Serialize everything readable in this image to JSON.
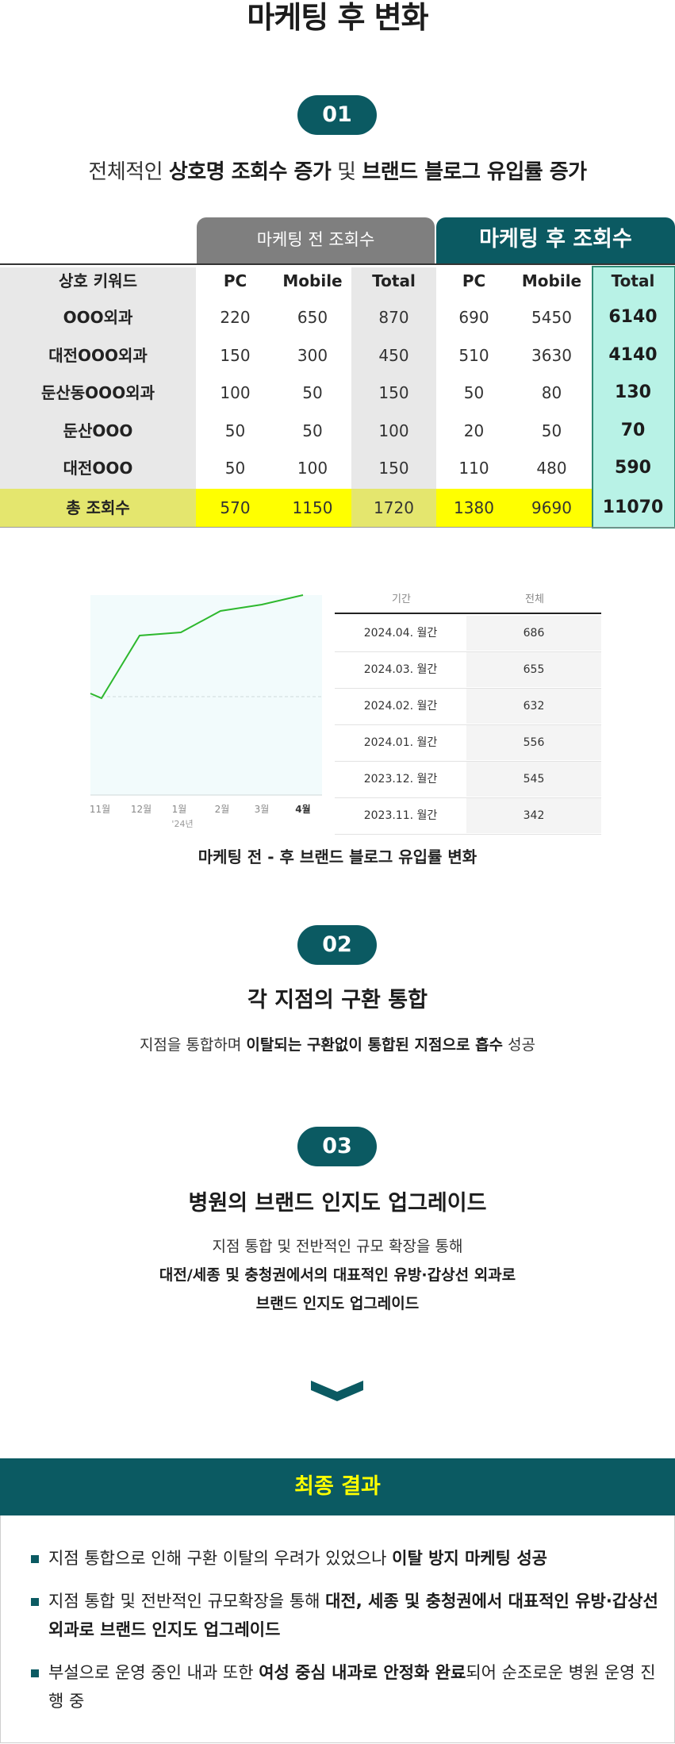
{
  "page_title": "마케팅 후 변화",
  "section1": {
    "number": "01",
    "subtitle_pre": "전체적인 ",
    "subtitle_b1": "상호명 조회수 증가",
    "subtitle_mid": " 및 ",
    "subtitle_b2": "브랜드 블로그 유입률 증가"
  },
  "keyword_table": {
    "group_before": "마케팅 전 조회수",
    "group_after": "마케팅 후 조회수",
    "columns": [
      "상호 키워드",
      "PC",
      "Mobile",
      "Total",
      "PC",
      "Mobile",
      "Total"
    ],
    "rows": [
      {
        "keyword": "OOO외과",
        "before_pc": "220",
        "before_mobile": "650",
        "before_total": "870",
        "after_pc": "690",
        "after_mobile": "5450",
        "after_total": "6140"
      },
      {
        "keyword": "대전OOO외과",
        "before_pc": "150",
        "before_mobile": "300",
        "before_total": "450",
        "after_pc": "510",
        "after_mobile": "3630",
        "after_total": "4140"
      },
      {
        "keyword": "둔산동OOO외과",
        "before_pc": "100",
        "before_mobile": "50",
        "before_total": "150",
        "after_pc": "50",
        "after_mobile": "80",
        "after_total": "130"
      },
      {
        "keyword": "둔산OOO",
        "before_pc": "50",
        "before_mobile": "50",
        "before_total": "100",
        "after_pc": "20",
        "after_mobile": "50",
        "after_total": "70"
      },
      {
        "keyword": "대전OOO",
        "before_pc": "50",
        "before_mobile": "100",
        "before_total": "150",
        "after_pc": "110",
        "after_mobile": "480",
        "after_total": "590"
      }
    ],
    "total_row": {
      "keyword": "총 조회수",
      "before_pc": "570",
      "before_mobile": "1150",
      "before_total": "1720",
      "after_pc": "1380",
      "after_mobile": "9690",
      "after_total": "11070"
    }
  },
  "chart_data": {
    "type": "line",
    "categories": [
      "11월",
      "12월",
      "1월",
      "2월",
      "3월",
      "4월"
    ],
    "year_label": "'24년",
    "series": [
      {
        "values": [
          342,
          545,
          556,
          632,
          655,
          686
        ]
      }
    ],
    "ylim": [
      0,
      700
    ],
    "grid": true,
    "colors": {
      "line": "#2eb82e",
      "area": "#f2fbfc"
    }
  },
  "mini_table": {
    "headers": [
      "기간",
      "전체"
    ],
    "rows": [
      {
        "period": "2024.04. 월간",
        "value": "686"
      },
      {
        "period": "2024.03. 월간",
        "value": "655"
      },
      {
        "period": "2024.02. 월간",
        "value": "632"
      },
      {
        "period": "2024.01. 월간",
        "value": "556"
      },
      {
        "period": "2023.12. 월간",
        "value": "545"
      },
      {
        "period": "2023.11. 월간",
        "value": "342"
      }
    ]
  },
  "chart_caption": "마케팅 전 - 후 브랜드 블로그 유입률 변화",
  "section2": {
    "number": "02",
    "title": "각 지점의 구환 통합",
    "desc_pre": "지점을 통합하며 ",
    "desc_b": "이탈되는 구환없이 통합된 지점으로 흡수",
    "desc_post": " 성공"
  },
  "section3": {
    "number": "03",
    "title": "병원의 브랜드 인지도 업그레이드",
    "line1": "지점 통합 및 전반적인 규모 확장을 통해",
    "line2": "대전/세종 및 충청권에서의 대표적인 유방·갑상선 외과로",
    "line3": "브랜드 인지도 업그레이드"
  },
  "final": {
    "title": "최종 결과",
    "items": [
      {
        "pre": "지점 통합으로 인해 구환 이탈의 우려가 있었으나 ",
        "bold": "이탈 방지 마케팅 성공",
        "post": ""
      },
      {
        "pre": "지점 통합 및 전반적인 규모확장을 통해 ",
        "bold": "대전, 세종 및 충청권에서 대표적인 유방·갑상선 외과로 브랜드 인지도 업그레이드",
        "post": ""
      },
      {
        "pre": "부설으로 운영 중인 내과 또한 ",
        "bold": "여성 중심 내과로 안정화 완료",
        "post": "되어 순조로운 병원 운영 진행 중"
      }
    ]
  },
  "colors": {
    "accent": "#0b5a62",
    "highlight": "#ffff00",
    "mint": "#b8f2e6",
    "gray_header": "#7f7f7f"
  }
}
